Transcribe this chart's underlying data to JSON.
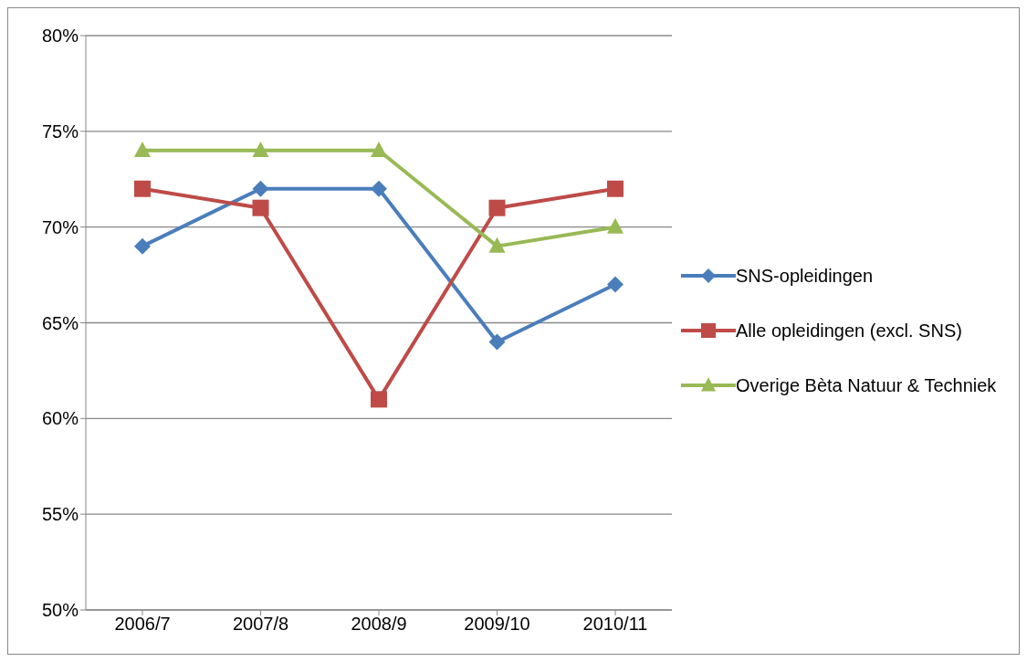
{
  "chart_data": {
    "type": "line",
    "categories": [
      "2006/7",
      "2007/8",
      "2008/9",
      "2009/10",
      "2010/11"
    ],
    "series": [
      {
        "name": "SNS-opleidingen",
        "color": "#4a7ebb",
        "marker": "diamond",
        "values": [
          69,
          72,
          72,
          64,
          67
        ]
      },
      {
        "name": "Alle opleidingen (excl. SNS)",
        "color": "#be4b48",
        "marker": "square",
        "values": [
          72,
          71,
          61,
          71,
          72
        ]
      },
      {
        "name": "Overige Bèta Natuur & Techniek",
        "color": "#98b954",
        "marker": "triangle",
        "values": [
          74,
          74,
          74,
          69,
          70
        ]
      }
    ],
    "ylim": [
      50,
      80
    ],
    "yticks": [
      {
        "value": 50,
        "label": "50%"
      },
      {
        "value": 55,
        "label": "55%"
      },
      {
        "value": 60,
        "label": "60%"
      },
      {
        "value": 65,
        "label": "65%"
      },
      {
        "value": 70,
        "label": "70%"
      },
      {
        "value": 75,
        "label": "75%"
      },
      {
        "value": 80,
        "label": "80%"
      }
    ],
    "grid": "y",
    "legend": "right",
    "line_style": "solid"
  }
}
